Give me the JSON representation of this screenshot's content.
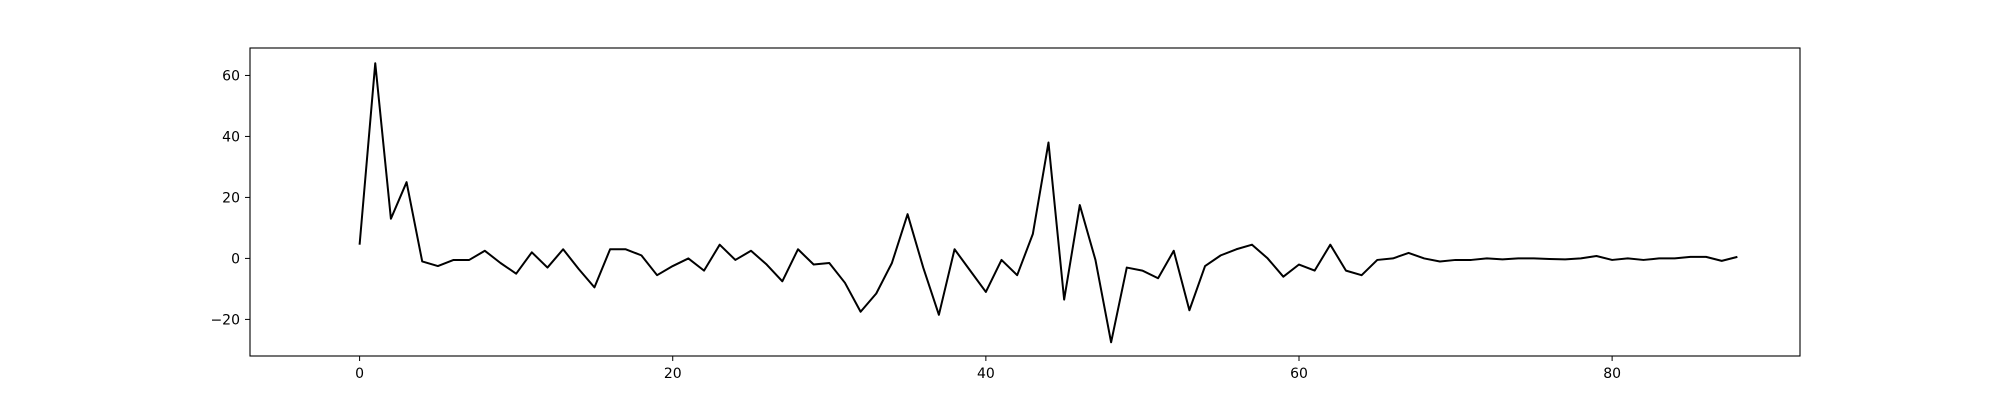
{
  "chart_data": {
    "type": "line",
    "title": "",
    "xlabel": "",
    "ylabel": "",
    "xlim": [
      -7,
      92
    ],
    "ylim": [
      -32,
      69
    ],
    "xticks": [
      0,
      20,
      40,
      60,
      80
    ],
    "yticks": [
      -20,
      0,
      20,
      40,
      60
    ],
    "xtick_labels": [
      "0",
      "20",
      "40",
      "60",
      "80"
    ],
    "ytick_labels": [
      "−20",
      "0",
      "20",
      "40",
      "60"
    ],
    "grid": false,
    "legend": "none",
    "colors": {
      "line": "#000000",
      "frame": "#000000",
      "background": "#ffffff"
    },
    "series": [
      {
        "values": [
          4.5,
          64,
          13,
          25,
          -1,
          -2.5,
          -0.5,
          -0.5,
          2.5,
          -1.5,
          -5,
          2,
          -3,
          3,
          -3.5,
          -9.5,
          3,
          3,
          1,
          -5.5,
          -2.5,
          0,
          -4,
          4.5,
          -0.5,
          2.5,
          -2,
          -7.5,
          3,
          -2,
          -1.5,
          -8,
          -17.5,
          -11.5,
          -1.5,
          14.5,
          -3,
          -18.5,
          3,
          -4,
          -11,
          -0.5,
          -5.5,
          8,
          38,
          -13.5,
          17.5,
          -0.5,
          -27.5,
          -3,
          -4,
          -6.5,
          2.5,
          -17,
          -2.5,
          1,
          3,
          4.5,
          0,
          -6,
          -2,
          -4,
          4.5,
          -4,
          -5.5,
          -0.5,
          0,
          1.8,
          0,
          -1,
          -0.5,
          -0.5,
          0,
          -0.3,
          0,
          0,
          -0.2,
          -0.3,
          0,
          0.8,
          -0.5,
          0,
          -0.5,
          0,
          0,
          0.5,
          0.5,
          -0.8,
          0.5
        ]
      }
    ]
  }
}
